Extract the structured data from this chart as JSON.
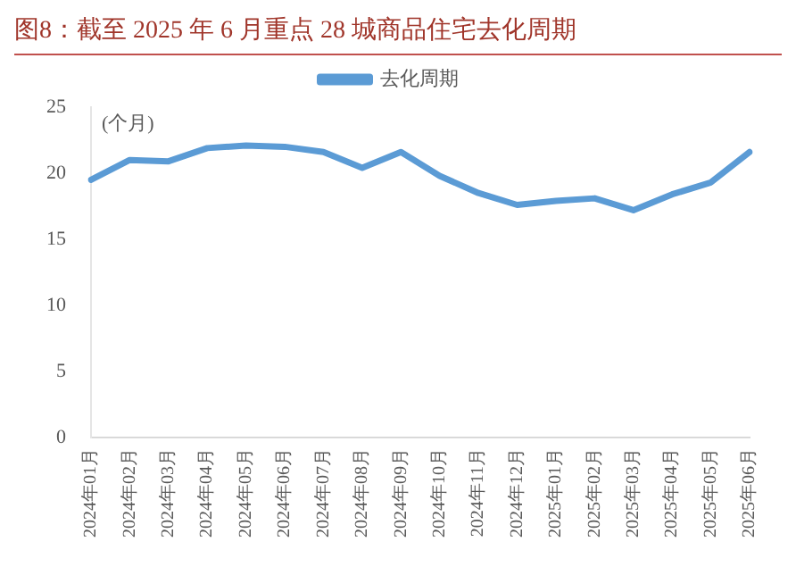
{
  "chart_data": {
    "type": "line",
    "title": "图8：截至 2025 年 6 月重点 28 城商品住宅去化周期",
    "ylabel": "(个月)",
    "categories": [
      "2024年01月",
      "2024年02月",
      "2024年03月",
      "2024年04月",
      "2024年05月",
      "2024年06月",
      "2024年07月",
      "2024年08月",
      "2024年09月",
      "2024年10月",
      "2024年11月",
      "2024年12月",
      "2025年01月",
      "2025年02月",
      "2025年03月",
      "2025年04月",
      "2025年05月",
      "2025年06月"
    ],
    "series": [
      {
        "name": "去化周期",
        "color": "#5b9bd5",
        "values": [
          19.5,
          21.0,
          20.9,
          21.9,
          22.1,
          22.0,
          21.6,
          20.4,
          21.6,
          19.8,
          18.5,
          17.6,
          17.9,
          18.1,
          17.2,
          18.4,
          19.3,
          21.6
        ]
      }
    ],
    "ylim": [
      0,
      25
    ],
    "yticks": [
      0,
      5,
      10,
      15,
      20,
      25
    ],
    "grid": false,
    "legend": "top",
    "marker": "none",
    "line_style": "solid"
  }
}
